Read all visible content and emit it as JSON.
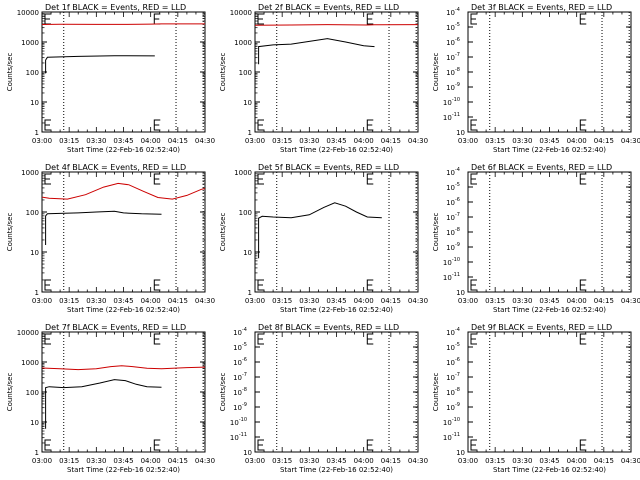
{
  "figure": {
    "x_tick_labels": [
      "03:00",
      "03:15",
      "03:30",
      "03:45",
      "04:00",
      "04:15",
      "04:30"
    ],
    "xlabel": "Start Time (22-Feb-16 02:52:40)",
    "ylabel": "Counts/sec"
  },
  "chart_data": [
    {
      "type": "line",
      "title": "Det 1f BLACK = Events, RED = LLD",
      "y_scale": "log",
      "y_ticks": [
        {
          "label": "10000",
          "e": 0
        },
        {
          "label": "1000",
          "e": 0
        },
        {
          "label": "100",
          "e": 0
        },
        {
          "label": "10",
          "e": 0
        },
        {
          "label": "1",
          "e": 0
        }
      ],
      "xlim_min": [
        3,
        4.5
      ],
      "ylim": [
        1,
        10000
      ],
      "vlines_min": [
        12,
        74,
        89
      ],
      "e_marker_min": 62,
      "series": [
        {
          "color": "#cc0000",
          "data_min": [
            [
              -6,
              3800
            ],
            [
              10,
              3900
            ],
            [
              30,
              3850
            ],
            [
              54,
              3900
            ],
            [
              60,
              3950
            ],
            [
              66,
              4000
            ],
            [
              92,
              4000
            ]
          ]
        },
        {
          "color": "#000000",
          "data_min": [
            [
              2,
              90
            ],
            [
              2,
              250
            ],
            [
              3,
              310
            ],
            [
              20,
              330
            ],
            [
              40,
              350
            ],
            [
              62,
              345
            ],
            [
              62,
              330
            ]
          ]
        }
      ]
    },
    {
      "type": "line",
      "title": "Det 2f BLACK = Events, RED = LLD",
      "y_scale": "log",
      "y_ticks": [
        {
          "label": "10000",
          "e": 0
        },
        {
          "label": "1000",
          "e": 0
        },
        {
          "label": "100",
          "e": 0
        },
        {
          "label": "10",
          "e": 0
        },
        {
          "label": "1",
          "e": 0
        }
      ],
      "xlim_min": [
        3,
        4.5
      ],
      "ylim": [
        1,
        10000
      ],
      "vlines_min": [
        12,
        74,
        89
      ],
      "e_marker_min": 62,
      "series": [
        {
          "color": "#cc0000",
          "data_min": [
            [
              -6,
              3600
            ],
            [
              20,
              3700
            ],
            [
              40,
              3800
            ],
            [
              62,
              3700
            ],
            [
              66,
              3750
            ],
            [
              92,
              3800
            ]
          ]
        },
        {
          "color": "#000000",
          "data_min": [
            [
              2,
              180
            ],
            [
              2,
              700
            ],
            [
              10,
              800
            ],
            [
              20,
              850
            ],
            [
              30,
              1050
            ],
            [
              40,
              1300
            ],
            [
              50,
              1000
            ],
            [
              60,
              750
            ],
            [
              66,
              700
            ]
          ]
        }
      ]
    },
    {
      "type": "line",
      "title": "Det 3f BLACK = Events, RED = LLD",
      "y_scale": "log",
      "y_ticks": [
        {
          "label": "10",
          "e": -4
        },
        {
          "label": "10",
          "e": -5
        },
        {
          "label": "10",
          "e": -6
        },
        {
          "label": "10",
          "e": -7
        },
        {
          "label": "10",
          "e": -8
        },
        {
          "label": "10",
          "e": -9
        },
        {
          "label": "10",
          "e": -10
        },
        {
          "label": "10",
          "e": -11
        },
        {
          "label": "10",
          "e": 0
        }
      ],
      "xlim_min": [
        3,
        4.5
      ],
      "ylim": [
        1,
        0.0001
      ],
      "vlines_min": [
        12,
        74,
        89
      ],
      "e_marker_min": 62,
      "series": []
    },
    {
      "type": "line",
      "title": "Det 4f BLACK = Events, RED = LLD",
      "y_scale": "log",
      "y_ticks": [
        {
          "label": "1000",
          "e": 0
        },
        {
          "label": "100",
          "e": 0
        },
        {
          "label": "10",
          "e": 0
        },
        {
          "label": "1",
          "e": 0
        }
      ],
      "xlim_min": [
        3,
        4.5
      ],
      "ylim": [
        1,
        1000
      ],
      "vlines_min": [
        12,
        74,
        89
      ],
      "e_marker_min": 62,
      "series": [
        {
          "color": "#cc0000",
          "data_min": [
            [
              -6,
              260
            ],
            [
              4,
              220
            ],
            [
              14,
              210
            ],
            [
              24,
              270
            ],
            [
              34,
              420
            ],
            [
              42,
              520
            ],
            [
              48,
              480
            ],
            [
              56,
              330
            ],
            [
              64,
              230
            ],
            [
              72,
              210
            ],
            [
              80,
              260
            ],
            [
              88,
              370
            ],
            [
              92,
              400
            ]
          ]
        },
        {
          "color": "#000000",
          "data_min": [
            [
              2,
              15
            ],
            [
              2,
              80
            ],
            [
              3,
              90
            ],
            [
              10,
              92
            ],
            [
              20,
              95
            ],
            [
              30,
              100
            ],
            [
              40,
              105
            ],
            [
              45,
              95
            ],
            [
              55,
              90
            ],
            [
              66,
              88
            ]
          ]
        }
      ]
    },
    {
      "type": "line",
      "title": "Det 5f BLACK = Events, RED = LLD",
      "y_scale": "log",
      "y_ticks": [
        {
          "label": "1000",
          "e": 0
        },
        {
          "label": "100",
          "e": 0
        },
        {
          "label": "10",
          "e": 0
        },
        {
          "label": "1",
          "e": 0
        }
      ],
      "xlim_min": [
        3,
        4.5
      ],
      "ylim": [
        1,
        1000
      ],
      "vlines_min": [
        12,
        74,
        89
      ],
      "e_marker_min": 62,
      "series": [
        {
          "color": "#000000",
          "data_min": [
            [
              2,
              7
            ],
            [
              2,
              70
            ],
            [
              4,
              78
            ],
            [
              10,
              75
            ],
            [
              20,
              72
            ],
            [
              30,
              85
            ],
            [
              38,
              130
            ],
            [
              44,
              170
            ],
            [
              50,
              140
            ],
            [
              56,
              100
            ],
            [
              62,
              75
            ],
            [
              70,
              72
            ]
          ]
        }
      ]
    },
    {
      "type": "line",
      "title": "Det 6f BLACK = Events, RED = LLD",
      "y_scale": "log",
      "y_ticks": [
        {
          "label": "10",
          "e": -4
        },
        {
          "label": "10",
          "e": -5
        },
        {
          "label": "10",
          "e": -6
        },
        {
          "label": "10",
          "e": -7
        },
        {
          "label": "10",
          "e": -8
        },
        {
          "label": "10",
          "e": -9
        },
        {
          "label": "10",
          "e": -10
        },
        {
          "label": "10",
          "e": -11
        },
        {
          "label": "10",
          "e": 0
        }
      ],
      "xlim_min": [
        3,
        4.5
      ],
      "ylim": [
        1,
        0.0001
      ],
      "vlines_min": [
        12,
        74,
        89
      ],
      "e_marker_min": 62,
      "series": []
    },
    {
      "type": "line",
      "title": "Det 7f BLACK = Events, RED = LLD",
      "y_scale": "log",
      "y_ticks": [
        {
          "label": "10000",
          "e": 0
        },
        {
          "label": "1000",
          "e": 0
        },
        {
          "label": "100",
          "e": 0
        },
        {
          "label": "10",
          "e": 0
        },
        {
          "label": "1",
          "e": 0
        }
      ],
      "xlim_min": [
        3,
        4.5
      ],
      "ylim": [
        1,
        10000
      ],
      "vlines_min": [
        12,
        74,
        89
      ],
      "e_marker_min": 62,
      "series": [
        {
          "color": "#cc0000",
          "data_min": [
            [
              -6,
              650
            ],
            [
              10,
              600
            ],
            [
              20,
              560
            ],
            [
              30,
              600
            ],
            [
              38,
              700
            ],
            [
              44,
              750
            ],
            [
              50,
              700
            ],
            [
              58,
              620
            ],
            [
              66,
              600
            ],
            [
              80,
              650
            ],
            [
              92,
              680
            ]
          ]
        },
        {
          "color": "#000000",
          "data_min": [
            [
              2,
              6
            ],
            [
              2,
              140
            ],
            [
              4,
              150
            ],
            [
              12,
              140
            ],
            [
              22,
              150
            ],
            [
              32,
              200
            ],
            [
              40,
              260
            ],
            [
              46,
              240
            ],
            [
              52,
              180
            ],
            [
              58,
              150
            ],
            [
              66,
              145
            ]
          ]
        }
      ]
    },
    {
      "type": "line",
      "title": "Det 8f BLACK = Events, RED = LLD",
      "y_scale": "log",
      "y_ticks": [
        {
          "label": "10",
          "e": -4
        },
        {
          "label": "10",
          "e": -5
        },
        {
          "label": "10",
          "e": -6
        },
        {
          "label": "10",
          "e": -7
        },
        {
          "label": "10",
          "e": -8
        },
        {
          "label": "10",
          "e": -9
        },
        {
          "label": "10",
          "e": -10
        },
        {
          "label": "10",
          "e": -11
        },
        {
          "label": "10",
          "e": 0
        }
      ],
      "xlim_min": [
        3,
        4.5
      ],
      "ylim": [
        1,
        0.0001
      ],
      "vlines_min": [
        12,
        74,
        89
      ],
      "e_marker_min": 62,
      "series": []
    },
    {
      "type": "line",
      "title": "Det 9f BLACK = Events, RED = LLD",
      "y_scale": "log",
      "y_ticks": [
        {
          "label": "10",
          "e": -4
        },
        {
          "label": "10",
          "e": -5
        },
        {
          "label": "10",
          "e": -6
        },
        {
          "label": "10",
          "e": -7
        },
        {
          "label": "10",
          "e": -8
        },
        {
          "label": "10",
          "e": -9
        },
        {
          "label": "10",
          "e": -10
        },
        {
          "label": "10",
          "e": -11
        },
        {
          "label": "10",
          "e": 0
        }
      ],
      "xlim_min": [
        3,
        4.5
      ],
      "ylim": [
        1,
        0.0001
      ],
      "vlines_min": [
        12,
        74,
        89
      ],
      "e_marker_min": 62,
      "series": []
    }
  ]
}
